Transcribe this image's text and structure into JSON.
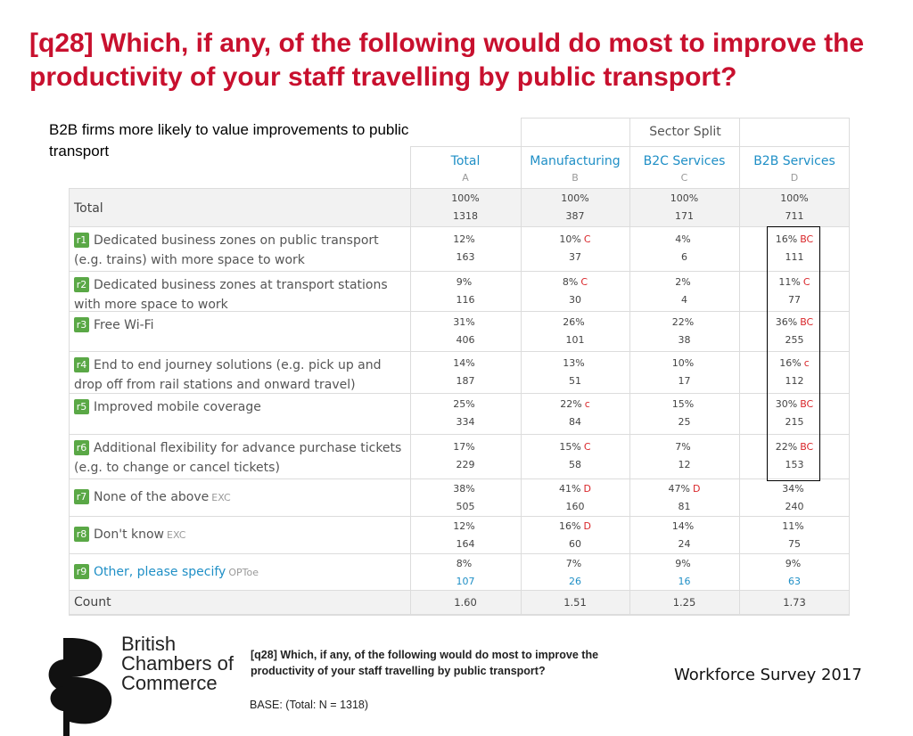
{
  "title": "[q28] Which, if any, of the following would do most to improve the productivity of your staff travelling by public transport?",
  "note": "B2B firms more likely to value improvements to public transport",
  "table": {
    "sector_split": "Sector Split",
    "columns": [
      {
        "name": "Total",
        "letter": "A"
      },
      {
        "name": "Manufacturing",
        "letter": "B"
      },
      {
        "name": "B2C Services",
        "letter": "C"
      },
      {
        "name": "B2B Services",
        "letter": "D"
      }
    ],
    "total_row": {
      "label": "Total",
      "cells": [
        {
          "pct": "100%",
          "n": "1318"
        },
        {
          "pct": "100%",
          "n": "387"
        },
        {
          "pct": "100%",
          "n": "171"
        },
        {
          "pct": "100%",
          "n": "711"
        }
      ]
    },
    "rows": [
      {
        "code": "r1",
        "label": "Dedicated business zones on public transport (e.g. trains) with more space to work",
        "tag": "",
        "cells": [
          {
            "pct": "12%",
            "sig": "",
            "n": "163"
          },
          {
            "pct": "10%",
            "sig": "C",
            "n": "37"
          },
          {
            "pct": "4%",
            "sig": "",
            "n": "6"
          },
          {
            "pct": "16%",
            "sig": "BC",
            "n": "111"
          }
        ]
      },
      {
        "code": "r2",
        "label": "Dedicated business zones at transport stations with more space to work",
        "tag": "",
        "cells": [
          {
            "pct": "9%",
            "sig": "",
            "n": "116"
          },
          {
            "pct": "8%",
            "sig": "C",
            "n": "30"
          },
          {
            "pct": "2%",
            "sig": "",
            "n": "4"
          },
          {
            "pct": "11%",
            "sig": "C",
            "n": "77"
          }
        ]
      },
      {
        "code": "r3",
        "label": "Free Wi-Fi",
        "tag": "",
        "cells": [
          {
            "pct": "31%",
            "sig": "",
            "n": "406"
          },
          {
            "pct": "26%",
            "sig": "",
            "n": "101"
          },
          {
            "pct": "22%",
            "sig": "",
            "n": "38"
          },
          {
            "pct": "36%",
            "sig": "BC",
            "n": "255"
          }
        ]
      },
      {
        "code": "r4",
        "label": "End to end journey solutions (e.g. pick up and drop off from rail stations and onward travel)",
        "tag": "",
        "cells": [
          {
            "pct": "14%",
            "sig": "",
            "n": "187"
          },
          {
            "pct": "13%",
            "sig": "",
            "n": "51"
          },
          {
            "pct": "10%",
            "sig": "",
            "n": "17"
          },
          {
            "pct": "16%",
            "sig": "c",
            "n": "112"
          }
        ]
      },
      {
        "code": "r5",
        "label": "Improved mobile coverage",
        "tag": "",
        "cells": [
          {
            "pct": "25%",
            "sig": "",
            "n": "334"
          },
          {
            "pct": "22%",
            "sig": "c",
            "n": "84"
          },
          {
            "pct": "15%",
            "sig": "",
            "n": "25"
          },
          {
            "pct": "30%",
            "sig": "BC",
            "n": "215"
          }
        ]
      },
      {
        "code": "r6",
        "label": "Additional flexibility for advance purchase tickets (e.g. to change or cancel tickets)",
        "tag": "",
        "cells": [
          {
            "pct": "17%",
            "sig": "",
            "n": "229"
          },
          {
            "pct": "15%",
            "sig": "C",
            "n": "58"
          },
          {
            "pct": "7%",
            "sig": "",
            "n": "12"
          },
          {
            "pct": "22%",
            "sig": "BC",
            "n": "153"
          }
        ]
      },
      {
        "code": "r7",
        "label": "None of the above",
        "tag": "EXC",
        "cells": [
          {
            "pct": "38%",
            "sig": "",
            "n": "505"
          },
          {
            "pct": "41%",
            "sig": "D",
            "n": "160"
          },
          {
            "pct": "47%",
            "sig": "D",
            "n": "81"
          },
          {
            "pct": "34%",
            "sig": "",
            "n": "240"
          }
        ]
      },
      {
        "code": "r8",
        "label": "Don't know",
        "tag": "EXC",
        "cells": [
          {
            "pct": "12%",
            "sig": "",
            "n": "164"
          },
          {
            "pct": "16%",
            "sig": "D",
            "n": "60"
          },
          {
            "pct": "14%",
            "sig": "",
            "n": "24"
          },
          {
            "pct": "11%",
            "sig": "",
            "n": "75"
          }
        ]
      },
      {
        "code": "r9",
        "label": "Other, please specify",
        "tag": "OPToe",
        "cells": [
          {
            "pct": "8%",
            "sig": "",
            "n": "107"
          },
          {
            "pct": "7%",
            "sig": "",
            "n": "26"
          },
          {
            "pct": "9%",
            "sig": "",
            "n": "16"
          },
          {
            "pct": "9%",
            "sig": "",
            "n": "63"
          }
        ]
      }
    ],
    "count_row": {
      "label": "Count",
      "values": [
        "1.60",
        "1.51",
        "1.25",
        "1.73"
      ]
    }
  },
  "logo": {
    "line1": "British",
    "line2": "Chambers of",
    "line3": "Commerce"
  },
  "footer_question": "[q28] Which, if any, of the following would do most to improve the productivity of your staff travelling by public transport?",
  "base": "BASE: (Total: N = 1318)",
  "survey_name": "Workforce Survey 2017",
  "colors": {
    "title": "#c8102e",
    "accent_blue": "#1f8fc6",
    "badge_green": "#5aa846",
    "sig_red": "#d9262a"
  }
}
